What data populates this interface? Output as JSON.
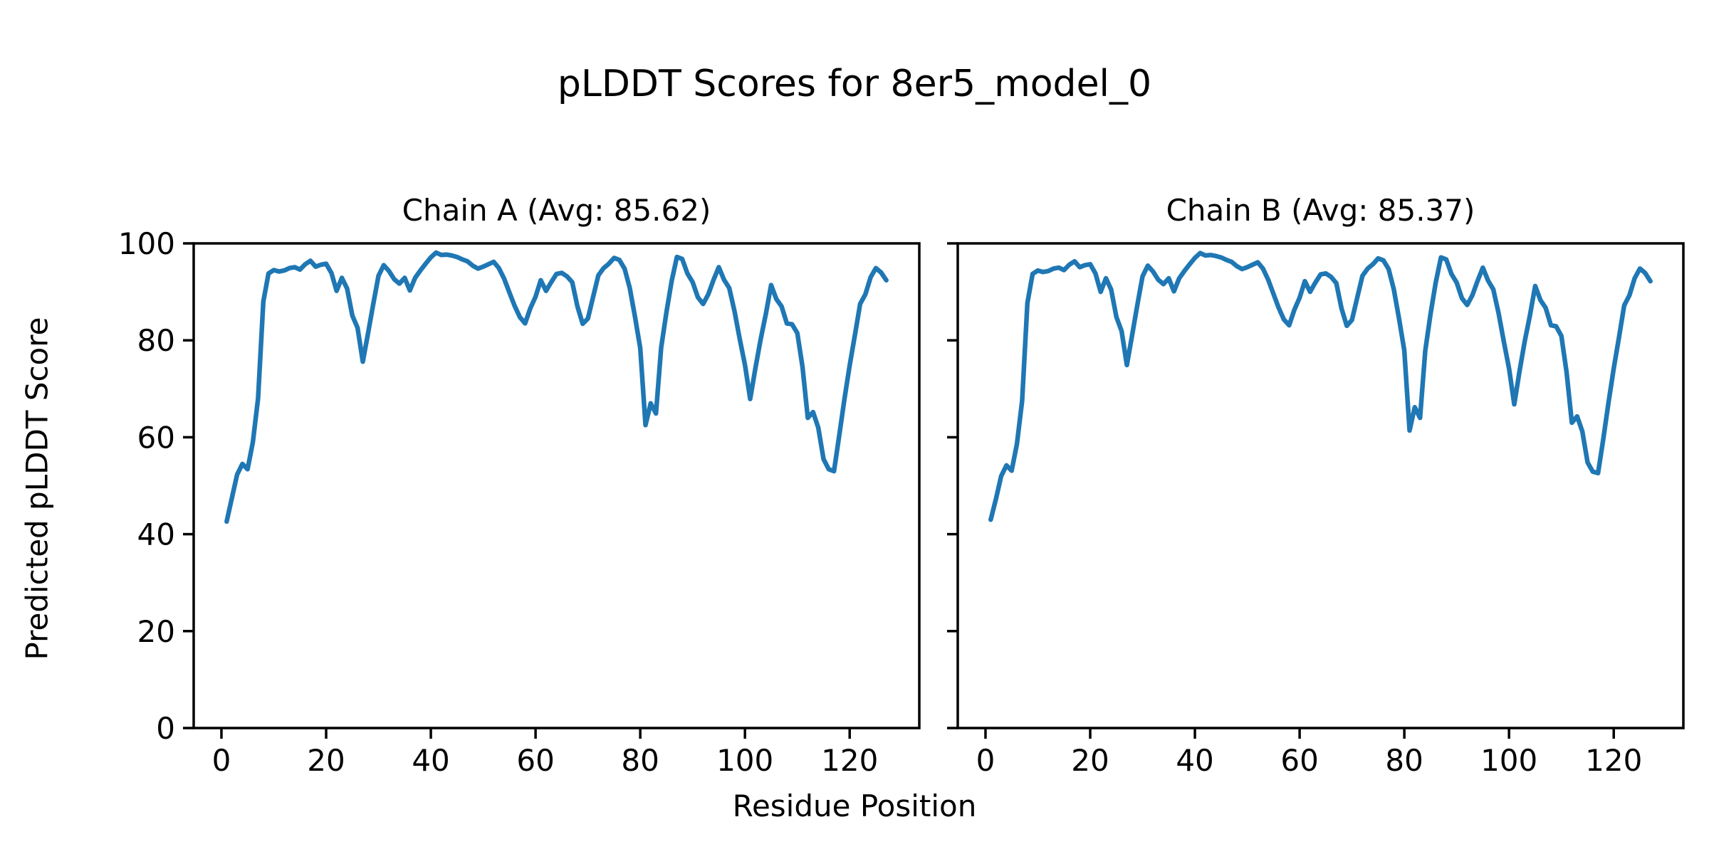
{
  "figure_title": "pLDDT Scores for 8er5_model_0",
  "xlabel": "Residue Position",
  "ylabel": "Predicted pLDDT Score",
  "line_color": "#1f77b4",
  "background_color": "#ffffff",
  "chart_data": [
    {
      "type": "line",
      "title": "Chain A (Avg: 85.62)",
      "chain": "A",
      "avg": 85.62,
      "xlabel": "Residue Position",
      "ylabel": "Predicted pLDDT Score",
      "xlim": [
        -5.3,
        133.3
      ],
      "ylim": [
        0,
        100
      ],
      "xticks": [
        0,
        20,
        40,
        60,
        80,
        100,
        120
      ],
      "yticks": [
        0,
        20,
        40,
        60,
        80,
        100
      ],
      "y_tick_labels_visible": true,
      "grid": false,
      "x_start": 1,
      "series": [
        {
          "name": "pLDDT",
          "color": "#1f77b4",
          "y": [
            42.6,
            47.5,
            52.3,
            54.5,
            53.4,
            59.0,
            68.0,
            88.0,
            93.8,
            94.5,
            94.2,
            94.4,
            94.9,
            95.1,
            94.6,
            95.7,
            96.4,
            95.2,
            95.6,
            95.8,
            93.9,
            90.2,
            92.9,
            90.7,
            85.1,
            82.6,
            75.6,
            81.4,
            87.5,
            93.3,
            95.5,
            94.3,
            92.6,
            91.7,
            92.9,
            90.3,
            92.9,
            94.4,
            95.8,
            97.1,
            98.1,
            97.6,
            97.7,
            97.5,
            97.2,
            96.7,
            96.3,
            95.4,
            94.8,
            95.2,
            95.7,
            96.2,
            94.9,
            92.7,
            89.9,
            87.1,
            84.8,
            83.5,
            86.6,
            89.0,
            92.4,
            90.2,
            92.0,
            93.7,
            93.9,
            93.2,
            92.0,
            87.0,
            83.4,
            84.5,
            89.0,
            93.4,
            94.9,
            95.8,
            97.0,
            96.6,
            94.8,
            90.8,
            84.8,
            78.4,
            62.5,
            67.0,
            64.9,
            78.5,
            85.8,
            92.2,
            97.2,
            96.8,
            93.8,
            92.0,
            88.9,
            87.5,
            89.5,
            92.5,
            95.1,
            92.5,
            90.8,
            86.0,
            80.3,
            74.9,
            67.9,
            74.3,
            80.2,
            85.5,
            91.4,
            88.5,
            87.0,
            83.5,
            83.3,
            81.5,
            74.5,
            64.0,
            65.2,
            62.0,
            55.5,
            53.4,
            53.0,
            60.3,
            67.9,
            74.8,
            81.1,
            87.5,
            89.5,
            93.0,
            94.9,
            94.0,
            92.4
          ]
        }
      ]
    },
    {
      "type": "line",
      "title": "Chain B (Avg: 85.37)",
      "chain": "B",
      "avg": 85.37,
      "xlabel": "Residue Position",
      "ylabel": "Predicted pLDDT Score",
      "xlim": [
        -5.3,
        133.3
      ],
      "ylim": [
        0,
        100
      ],
      "xticks": [
        0,
        20,
        40,
        60,
        80,
        100,
        120
      ],
      "yticks": [
        0,
        20,
        40,
        60,
        80,
        100
      ],
      "y_tick_labels_visible": false,
      "grid": false,
      "x_start": 1,
      "series": [
        {
          "name": "pLDDT",
          "color": "#1f77b4",
          "y": [
            43.0,
            47.3,
            52.0,
            54.2,
            53.1,
            58.6,
            67.5,
            87.7,
            93.7,
            94.4,
            94.1,
            94.3,
            94.8,
            95.0,
            94.5,
            95.6,
            96.3,
            95.1,
            95.5,
            95.7,
            93.8,
            90.0,
            92.8,
            90.5,
            84.8,
            81.9,
            74.9,
            81.0,
            87.3,
            93.2,
            95.4,
            94.2,
            92.5,
            91.6,
            92.8,
            90.1,
            92.8,
            94.3,
            95.7,
            97.0,
            98.0,
            97.5,
            97.6,
            97.4,
            97.1,
            96.6,
            96.2,
            95.3,
            94.7,
            95.1,
            95.6,
            96.1,
            94.8,
            92.5,
            89.6,
            86.7,
            84.3,
            83.1,
            86.3,
            88.8,
            92.2,
            90.0,
            91.9,
            93.6,
            93.8,
            93.1,
            91.8,
            86.6,
            83.0,
            84.2,
            88.8,
            93.3,
            94.8,
            95.7,
            96.9,
            96.5,
            94.7,
            90.5,
            84.4,
            77.9,
            61.4,
            66.2,
            64.0,
            77.8,
            85.4,
            91.9,
            97.1,
            96.7,
            93.7,
            91.9,
            88.7,
            87.3,
            89.3,
            92.3,
            95.0,
            92.3,
            90.5,
            85.6,
            79.8,
            74.2,
            66.8,
            73.6,
            79.8,
            85.2,
            91.2,
            88.3,
            86.7,
            83.1,
            82.9,
            80.9,
            73.4,
            63.0,
            64.3,
            61.2,
            54.8,
            52.9,
            52.6,
            59.6,
            67.2,
            74.2,
            80.6,
            87.2,
            89.3,
            92.8,
            94.8,
            93.9,
            92.2
          ]
        }
      ]
    }
  ]
}
